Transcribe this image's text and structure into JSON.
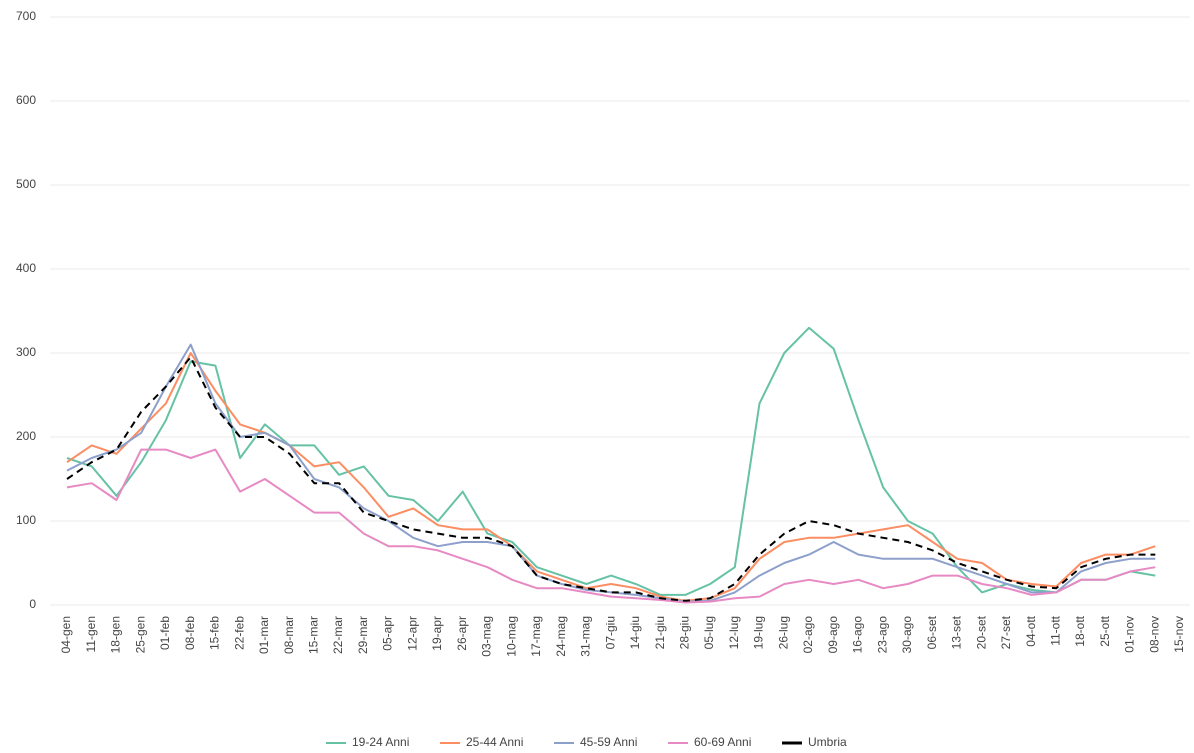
{
  "chart_data": {
    "type": "line",
    "categories": [
      "04-gen",
      "11-gen",
      "18-gen",
      "25-gen",
      "01-feb",
      "08-feb",
      "15-feb",
      "22-feb",
      "01-mar",
      "08-mar",
      "15-mar",
      "22-mar",
      "29-mar",
      "05-apr",
      "12-apr",
      "19-apr",
      "26-apr",
      "03-mag",
      "10-mag",
      "17-mag",
      "24-mag",
      "31-mag",
      "07-giu",
      "14-giu",
      "21-giu",
      "28-giu",
      "05-lug",
      "12-lug",
      "19-lug",
      "26-lug",
      "02-ago",
      "09-ago",
      "16-ago",
      "23-ago",
      "30-ago",
      "06-set",
      "13-set",
      "20-set",
      "27-set",
      "04-ott",
      "11-ott",
      "18-ott",
      "25-ott",
      "01-nov",
      "08-nov",
      "15-nov"
    ],
    "series": [
      {
        "name": "19-24 Anni",
        "color": "#66c2a5",
        "dashed": false,
        "values": [
          175,
          165,
          130,
          170,
          220,
          290,
          285,
          175,
          215,
          190,
          190,
          155,
          165,
          130,
          125,
          100,
          135,
          85,
          75,
          45,
          35,
          25,
          35,
          25,
          12,
          12,
          25,
          45,
          240,
          300,
          330,
          305,
          220,
          140,
          100,
          85,
          45,
          15,
          25,
          18,
          15,
          30,
          30,
          40,
          35,
          null
        ]
      },
      {
        "name": "25-44 Anni",
        "color": "#fc8d62",
        "dashed": false,
        "values": [
          170,
          190,
          180,
          210,
          240,
          300,
          255,
          215,
          205,
          190,
          165,
          170,
          140,
          105,
          115,
          95,
          90,
          90,
          70,
          40,
          30,
          20,
          25,
          20,
          10,
          5,
          8,
          20,
          55,
          75,
          80,
          80,
          85,
          90,
          95,
          75,
          55,
          50,
          30,
          25,
          22,
          50,
          60,
          60,
          70,
          null
        ]
      },
      {
        "name": "45-59 Anni",
        "color": "#8da0cb",
        "dashed": false,
        "values": [
          160,
          175,
          185,
          205,
          260,
          310,
          240,
          200,
          205,
          190,
          150,
          140,
          115,
          100,
          80,
          70,
          75,
          75,
          70,
          35,
          25,
          18,
          15,
          12,
          8,
          4,
          5,
          15,
          35,
          50,
          60,
          75,
          60,
          55,
          55,
          55,
          45,
          35,
          25,
          15,
          15,
          40,
          50,
          55,
          55,
          null
        ]
      },
      {
        "name": "60-69 Anni",
        "color": "#e78ac3",
        "dashed": false,
        "values": [
          140,
          145,
          125,
          185,
          185,
          175,
          185,
          135,
          150,
          130,
          110,
          110,
          85,
          70,
          70,
          65,
          55,
          45,
          30,
          20,
          20,
          15,
          10,
          8,
          6,
          3,
          4,
          8,
          10,
          25,
          30,
          25,
          30,
          20,
          25,
          35,
          35,
          25,
          20,
          12,
          15,
          30,
          30,
          40,
          45,
          null
        ]
      },
      {
        "name": "Umbria",
        "color": "#000000",
        "dashed": true,
        "values": [
          150,
          170,
          185,
          230,
          260,
          295,
          235,
          200,
          200,
          180,
          145,
          145,
          110,
          100,
          90,
          85,
          80,
          80,
          70,
          35,
          25,
          20,
          15,
          15,
          8,
          5,
          8,
          25,
          60,
          85,
          100,
          95,
          85,
          80,
          75,
          65,
          50,
          40,
          30,
          22,
          20,
          45,
          55,
          60,
          60,
          null
        ]
      }
    ],
    "ylim": [
      0,
      700
    ],
    "yticks": [
      0,
      100,
      200,
      300,
      400,
      500,
      600,
      700
    ],
    "grid": true,
    "legend": "bottom"
  }
}
